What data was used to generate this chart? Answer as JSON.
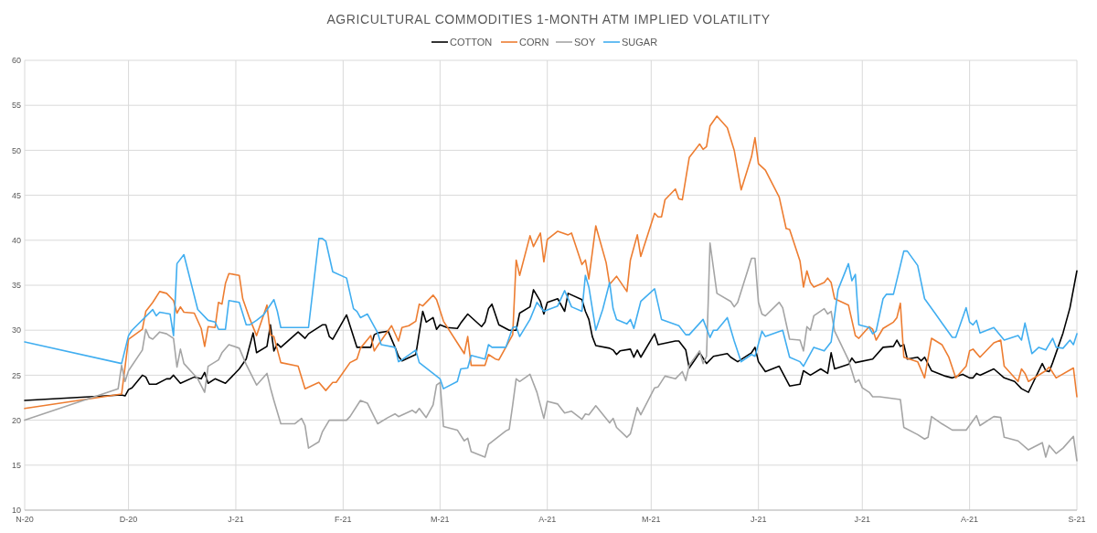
{
  "chart_data": {
    "type": "line",
    "title": "AGRICULTURAL COMMODITIES 1-MONTH ATM IMPLIED VOLATILITY",
    "xlim": [
      "2020-11-01",
      "2021-09-01"
    ],
    "xticks": [
      {
        "value": "2020-11-01",
        "label": "N-20"
      },
      {
        "value": "2020-12-01",
        "label": "D-20"
      },
      {
        "value": "2021-01-01",
        "label": "J-21"
      },
      {
        "value": "2021-02-01",
        "label": "F-21"
      },
      {
        "value": "2021-03-01",
        "label": "M-21"
      },
      {
        "value": "2021-04-01",
        "label": "A-21"
      },
      {
        "value": "2021-05-01",
        "label": "M-21"
      },
      {
        "value": "2021-06-01",
        "label": "J-21"
      },
      {
        "value": "2021-07-01",
        "label": "J-21"
      },
      {
        "value": "2021-08-01",
        "label": "A-21"
      },
      {
        "value": "2021-09-01",
        "label": "S-21"
      }
    ],
    "ylim": [
      10,
      60
    ],
    "yticks": [
      10,
      15,
      20,
      25,
      30,
      35,
      40,
      45,
      50,
      55,
      60
    ],
    "grid": true,
    "legend": "top",
    "series": [
      {
        "name": "COTTON",
        "color": "#000000",
        "x": [
          "2020-11-01",
          "2020-11-29",
          "2020-11-30",
          "2020-12-01",
          "2020-12-02",
          "2020-12-05",
          "2020-12-06",
          "2020-12-07",
          "2020-12-09",
          "2020-12-12",
          "2020-12-13",
          "2020-12-14",
          "2020-12-16",
          "2020-12-20",
          "2020-12-22",
          "2020-12-23",
          "2020-12-24",
          "2020-12-26",
          "2020-12-29",
          "2021-01-02",
          "2021-01-04",
          "2021-01-06",
          "2021-01-07",
          "2021-01-10",
          "2021-01-11",
          "2021-01-12",
          "2021-01-13",
          "2021-01-14",
          "2021-01-19",
          "2021-01-21",
          "2021-01-22",
          "2021-01-26",
          "2021-01-27",
          "2021-01-28",
          "2021-01-29",
          "2021-02-02",
          "2021-02-05",
          "2021-02-09",
          "2021-02-10",
          "2021-02-11",
          "2021-02-14",
          "2021-02-16",
          "2021-02-17",
          "2021-02-18",
          "2021-02-22",
          "2021-02-24",
          "2021-02-25",
          "2021-02-27",
          "2021-02-28",
          "2021-03-01",
          "2021-03-03",
          "2021-03-06",
          "2021-03-07",
          "2021-03-09",
          "2021-03-13",
          "2021-03-14",
          "2021-03-15",
          "2021-03-16",
          "2021-03-18",
          "2021-03-21",
          "2021-03-23",
          "2021-03-24",
          "2021-03-27",
          "2021-03-28",
          "2021-03-30",
          "2021-03-31",
          "2021-04-01",
          "2021-04-04",
          "2021-04-06",
          "2021-04-07",
          "2021-04-11",
          "2021-04-12",
          "2021-04-13",
          "2021-04-14",
          "2021-04-15",
          "2021-04-19",
          "2021-04-20",
          "2021-04-21",
          "2021-04-22",
          "2021-04-25",
          "2021-04-26",
          "2021-04-27",
          "2021-04-28",
          "2021-05-02",
          "2021-05-03",
          "2021-05-08",
          "2021-05-09",
          "2021-05-11",
          "2021-05-12",
          "2021-05-15",
          "2021-05-17",
          "2021-05-19",
          "2021-05-23",
          "2021-05-24",
          "2021-05-26",
          "2021-05-30",
          "2021-05-31",
          "2021-06-01",
          "2021-06-03",
          "2021-06-07",
          "2021-06-10",
          "2021-06-13",
          "2021-06-14",
          "2021-06-16",
          "2021-06-19",
          "2021-06-21",
          "2021-06-22",
          "2021-06-23",
          "2021-06-27",
          "2021-06-28",
          "2021-06-29",
          "2021-07-04",
          "2021-07-07",
          "2021-07-10",
          "2021-07-11",
          "2021-07-12",
          "2021-07-13",
          "2021-07-14",
          "2021-07-17",
          "2021-07-18",
          "2021-07-19",
          "2021-07-21",
          "2021-07-25",
          "2021-07-27",
          "2021-07-30",
          "2021-08-01",
          "2021-08-02",
          "2021-08-03",
          "2021-08-04",
          "2021-08-08",
          "2021-08-11",
          "2021-08-14",
          "2021-08-16",
          "2021-08-18",
          "2021-08-19",
          "2021-08-22",
          "2021-08-23",
          "2021-08-24",
          "2021-08-25",
          "2021-08-28",
          "2021-08-30",
          "2021-09-01"
        ],
        "values": [
          22.2,
          22.8,
          22.7,
          23.4,
          23.6,
          25.0,
          24.8,
          24.0,
          24.0,
          24.6,
          24.6,
          25.0,
          24.1,
          24.8,
          24.6,
          25.3,
          24.1,
          24.6,
          24.1,
          25.7,
          26.8,
          29.7,
          27.5,
          28.2,
          30.6,
          27.7,
          28.5,
          28.1,
          29.8,
          29.1,
          29.6,
          30.6,
          30.6,
          29.3,
          29.0,
          31.7,
          28.1,
          28.1,
          29.5,
          29.7,
          29.9,
          28.1,
          27.1,
          26.6,
          27.3,
          32.1,
          30.9,
          31.4,
          30.1,
          30.6,
          30.3,
          30.2,
          30.8,
          31.8,
          30.4,
          30.9,
          32.4,
          32.9,
          30.6,
          30.0,
          30.0,
          31.9,
          32.6,
          34.5,
          33.2,
          31.8,
          33.1,
          33.5,
          32.1,
          34.1,
          33.4,
          32.1,
          31.2,
          29.3,
          28.3,
          28.0,
          27.8,
          27.3,
          27.7,
          27.9,
          27.0,
          27.8,
          27.0,
          29.6,
          28.4,
          28.8,
          28.8,
          27.8,
          25.8,
          27.5,
          26.3,
          27.1,
          27.4,
          27.0,
          26.5,
          27.5,
          28.1,
          26.5,
          25.4,
          26.0,
          23.8,
          24.0,
          25.5,
          25.0,
          25.7,
          25.2,
          27.5,
          25.7,
          26.2,
          26.9,
          26.4,
          26.8,
          28.1,
          28.2,
          28.9,
          28.2,
          28.4,
          26.8,
          27.0,
          26.6,
          27.0,
          25.5,
          24.9,
          24.7,
          25.1,
          24.7,
          24.7,
          25.2,
          25.0,
          25.7,
          24.7,
          24.3,
          23.5,
          23.1,
          23.9,
          26.3,
          25.5,
          25.4,
          26.4,
          29.7,
          32.5,
          36.6
        ]
      },
      {
        "name": "CORN",
        "color": "#ed7d31",
        "x": [
          "2020-11-01",
          "2020-11-29",
          "2020-12-01",
          "2020-12-05",
          "2020-12-06",
          "2020-12-08",
          "2020-12-10",
          "2020-12-12",
          "2020-12-14",
          "2020-12-15",
          "2020-12-16",
          "2020-12-17",
          "2020-12-20",
          "2020-12-22",
          "2020-12-23",
          "2020-12-24",
          "2020-12-26",
          "2020-12-27",
          "2020-12-28",
          "2020-12-29",
          "2020-12-30",
          "2021-01-02",
          "2021-01-03",
          "2021-01-05",
          "2021-01-07",
          "2021-01-10",
          "2021-01-11",
          "2021-01-12",
          "2021-01-14",
          "2021-01-19",
          "2021-01-21",
          "2021-01-25",
          "2021-01-27",
          "2021-01-29",
          "2021-01-30",
          "2021-02-03",
          "2021-02-05",
          "2021-02-06",
          "2021-02-09",
          "2021-02-10",
          "2021-02-11",
          "2021-02-15",
          "2021-02-17",
          "2021-02-18",
          "2021-02-20",
          "2021-02-22",
          "2021-02-23",
          "2021-02-24",
          "2021-02-27",
          "2021-02-28",
          "2021-03-02",
          "2021-03-06",
          "2021-03-08",
          "2021-03-09",
          "2021-03-10",
          "2021-03-14",
          "2021-03-15",
          "2021-03-17",
          "2021-03-18",
          "2021-03-22",
          "2021-03-23",
          "2021-03-24",
          "2021-03-27",
          "2021-03-28",
          "2021-03-30",
          "2021-03-31",
          "2021-04-01",
          "2021-04-04",
          "2021-04-07",
          "2021-04-08",
          "2021-04-11",
          "2021-04-12",
          "2021-04-13",
          "2021-04-15",
          "2021-04-18",
          "2021-04-19",
          "2021-04-21",
          "2021-04-24",
          "2021-04-25",
          "2021-04-27",
          "2021-04-28",
          "2021-05-02",
          "2021-05-03",
          "2021-05-04",
          "2021-05-05",
          "2021-05-08",
          "2021-05-09",
          "2021-05-10",
          "2021-05-12",
          "2021-05-15",
          "2021-05-16",
          "2021-05-17",
          "2021-05-18",
          "2021-05-20",
          "2021-05-23",
          "2021-05-25",
          "2021-05-27",
          "2021-05-30",
          "2021-05-31",
          "2021-06-01",
          "2021-06-03",
          "2021-06-07",
          "2021-06-09",
          "2021-06-10",
          "2021-06-13",
          "2021-06-14",
          "2021-06-15",
          "2021-06-16",
          "2021-06-17",
          "2021-06-20",
          "2021-06-21",
          "2021-06-22",
          "2021-06-23",
          "2021-06-27",
          "2021-06-29",
          "2021-06-30",
          "2021-07-03",
          "2021-07-04",
          "2021-07-05",
          "2021-07-07",
          "2021-07-10",
          "2021-07-11",
          "2021-07-12",
          "2021-07-13",
          "2021-07-17",
          "2021-07-19",
          "2021-07-21",
          "2021-07-24",
          "2021-07-26",
          "2021-07-28",
          "2021-07-31",
          "2021-08-01",
          "2021-08-02",
          "2021-08-04",
          "2021-08-08",
          "2021-08-10",
          "2021-08-11",
          "2021-08-15",
          "2021-08-16",
          "2021-08-17",
          "2021-08-18",
          "2021-08-23",
          "2021-08-24",
          "2021-08-26",
          "2021-08-31",
          "2021-09-01"
        ],
        "values": [
          21.3,
          22.9,
          29.0,
          30.1,
          32.1,
          33.1,
          34.3,
          34.1,
          33.3,
          31.9,
          32.6,
          32.0,
          31.9,
          30.2,
          28.2,
          30.4,
          30.3,
          33.1,
          32.9,
          35.2,
          36.3,
          36.1,
          33.5,
          31.3,
          29.4,
          32.8,
          29.5,
          29.3,
          26.4,
          26.0,
          23.5,
          24.2,
          23.3,
          24.2,
          24.2,
          26.4,
          26.8,
          28.0,
          29.4,
          27.7,
          28.3,
          30.5,
          28.8,
          30.3,
          30.5,
          31.0,
          32.9,
          32.7,
          33.9,
          33.4,
          31.0,
          28.6,
          27.4,
          29.3,
          26.1,
          26.1,
          27.3,
          26.8,
          26.7,
          29.5,
          37.8,
          36.1,
          40.5,
          39.3,
          40.8,
          37.6,
          40.1,
          41.0,
          40.6,
          40.8,
          37.3,
          37.8,
          35.7,
          41.6,
          37.5,
          35.1,
          36.0,
          34.3,
          37.8,
          40.6,
          38.2,
          43.0,
          42.6,
          42.6,
          44.5,
          45.7,
          44.6,
          44.5,
          49.2,
          50.7,
          50.1,
          50.4,
          52.7,
          53.8,
          52.5,
          50.0,
          45.6,
          49.3,
          51.4,
          48.5,
          47.8,
          44.8,
          41.3,
          41.2,
          37.7,
          34.8,
          36.6,
          35.3,
          34.8,
          35.3,
          35.8,
          35.3,
          33.5,
          32.8,
          29.4,
          29.1,
          30.4,
          30.1,
          28.9,
          30.2,
          30.9,
          31.4,
          33.0,
          27.0,
          26.5,
          24.7,
          29.1,
          28.4,
          27.0,
          24.7,
          26.0,
          27.7,
          27.9,
          27.0,
          28.6,
          28.9,
          26.0,
          24.3,
          25.7,
          25.2,
          24.3,
          25.5,
          25.9,
          24.7,
          25.8,
          22.6
        ]
      },
      {
        "name": "SOY",
        "color": "#a5a5a5",
        "x": [
          "2020-11-01",
          "2020-11-28",
          "2020-11-29",
          "2020-11-30",
          "2020-12-01",
          "2020-12-05",
          "2020-12-06",
          "2020-12-07",
          "2020-12-08",
          "2020-12-10",
          "2020-12-12",
          "2020-12-14",
          "2020-12-15",
          "2020-12-16",
          "2020-12-17",
          "2020-12-21",
          "2020-12-23",
          "2020-12-24",
          "2020-12-27",
          "2020-12-28",
          "2020-12-30",
          "2021-01-02",
          "2021-01-04",
          "2021-01-07",
          "2021-01-10",
          "2021-01-11",
          "2021-01-12",
          "2021-01-14",
          "2021-01-18",
          "2021-01-20",
          "2021-01-21",
          "2021-01-22",
          "2021-01-25",
          "2021-01-26",
          "2021-01-28",
          "2021-02-02",
          "2021-02-03",
          "2021-02-06",
          "2021-02-08",
          "2021-02-11",
          "2021-02-14",
          "2021-02-16",
          "2021-02-17",
          "2021-02-21",
          "2021-02-22",
          "2021-02-23",
          "2021-02-25",
          "2021-02-27",
          "2021-02-28",
          "2021-03-01",
          "2021-03-02",
          "2021-03-06",
          "2021-03-08",
          "2021-03-09",
          "2021-03-10",
          "2021-03-14",
          "2021-03-15",
          "2021-03-20",
          "2021-03-21",
          "2021-03-22",
          "2021-03-23",
          "2021-03-24",
          "2021-03-27",
          "2021-03-29",
          "2021-03-31",
          "2021-04-01",
          "2021-04-04",
          "2021-04-06",
          "2021-04-08",
          "2021-04-11",
          "2021-04-12",
          "2021-04-13",
          "2021-04-15",
          "2021-04-19",
          "2021-04-20",
          "2021-04-21",
          "2021-04-24",
          "2021-04-25",
          "2021-04-27",
          "2021-04-28",
          "2021-05-02",
          "2021-05-03",
          "2021-05-05",
          "2021-05-08",
          "2021-05-10",
          "2021-05-11",
          "2021-05-12",
          "2021-05-15",
          "2021-05-16",
          "2021-05-17",
          "2021-05-18",
          "2021-05-20",
          "2021-05-24",
          "2021-05-25",
          "2021-05-26",
          "2021-05-30",
          "2021-05-31",
          "2021-06-01",
          "2021-06-02",
          "2021-06-03",
          "2021-06-07",
          "2021-06-08",
          "2021-06-10",
          "2021-06-13",
          "2021-06-14",
          "2021-06-15",
          "2021-06-16",
          "2021-06-17",
          "2021-06-20",
          "2021-06-21",
          "2021-06-22",
          "2021-06-23",
          "2021-06-27",
          "2021-06-29",
          "2021-06-30",
          "2021-07-01",
          "2021-07-03",
          "2021-07-04",
          "2021-07-06",
          "2021-07-08",
          "2021-07-12",
          "2021-07-13",
          "2021-07-17",
          "2021-07-19",
          "2021-07-20",
          "2021-07-21",
          "2021-07-24",
          "2021-07-27",
          "2021-07-31",
          "2021-08-03",
          "2021-08-04",
          "2021-08-08",
          "2021-08-10",
          "2021-08-11",
          "2021-08-15",
          "2021-08-18",
          "2021-08-22",
          "2021-08-23",
          "2021-08-24",
          "2021-08-26",
          "2021-08-28",
          "2021-08-31",
          "2021-09-01"
        ],
        "values": [
          20.0,
          23.5,
          26.1,
          24.3,
          25.5,
          27.8,
          30.1,
          29.2,
          29.0,
          29.8,
          29.6,
          29.1,
          25.9,
          27.9,
          26.3,
          24.6,
          23.1,
          26.0,
          26.7,
          27.5,
          28.4,
          28.0,
          26.2,
          23.9,
          25.2,
          23.6,
          22.2,
          19.6,
          19.6,
          20.2,
          19.4,
          16.9,
          17.6,
          18.7,
          20.0,
          20.0,
          20.4,
          22.2,
          21.9,
          19.6,
          20.3,
          20.7,
          20.4,
          21.1,
          20.8,
          21.3,
          20.3,
          21.7,
          23.9,
          24.2,
          19.3,
          18.9,
          17.7,
          18.0,
          16.5,
          15.9,
          17.3,
          18.8,
          19.0,
          21.7,
          24.6,
          24.3,
          25.1,
          23.1,
          20.2,
          22.1,
          21.8,
          20.8,
          21.0,
          20.1,
          20.7,
          20.6,
          21.6,
          19.7,
          20.2,
          19.2,
          18.1,
          18.5,
          21.4,
          20.6,
          23.6,
          23.7,
          24.9,
          24.6,
          25.4,
          24.4,
          26.1,
          27.7,
          26.3,
          27.1,
          39.7,
          34.1,
          33.2,
          32.6,
          33.1,
          38.0,
          38.0,
          33.1,
          31.8,
          31.6,
          33.1,
          32.5,
          29.0,
          28.9,
          27.7,
          30.4,
          30.0,
          31.6,
          32.4,
          31.8,
          32.1,
          29.9,
          26.7,
          24.2,
          24.5,
          23.6,
          23.1,
          22.6,
          22.6,
          22.5,
          22.3,
          19.2,
          18.4,
          17.9,
          18.1,
          20.4,
          19.6,
          18.9,
          18.9,
          20.5,
          19.4,
          20.4,
          20.3,
          18.1,
          17.7,
          16.7,
          17.5,
          15.9,
          17.2,
          16.3,
          16.9,
          18.2,
          15.5
        ]
      },
      {
        "name": "SUGAR",
        "color": "#41aef0",
        "x": [
          "2020-11-01",
          "2020-11-29",
          "2020-12-01",
          "2020-12-02",
          "2020-12-08",
          "2020-12-09",
          "2020-12-10",
          "2020-12-13",
          "2020-12-14",
          "2020-12-15",
          "2020-12-17",
          "2020-12-21",
          "2020-12-24",
          "2020-12-26",
          "2020-12-27",
          "2020-12-29",
          "2020-12-30",
          "2021-01-02",
          "2021-01-04",
          "2021-01-05",
          "2021-01-07",
          "2021-01-09",
          "2021-01-12",
          "2021-01-13",
          "2021-01-14",
          "2021-01-22",
          "2021-01-25",
          "2021-01-26",
          "2021-01-27",
          "2021-01-29",
          "2021-02-02",
          "2021-02-04",
          "2021-02-05",
          "2021-02-06",
          "2021-02-08",
          "2021-02-11",
          "2021-02-12",
          "2021-02-16",
          "2021-02-17",
          "2021-02-18",
          "2021-02-22",
          "2021-02-23",
          "2021-03-01",
          "2021-03-02",
          "2021-03-06",
          "2021-03-07",
          "2021-03-09",
          "2021-03-10",
          "2021-03-14",
          "2021-03-15",
          "2021-03-16",
          "2021-03-20",
          "2021-03-22",
          "2021-03-23",
          "2021-03-24",
          "2021-03-27",
          "2021-03-29",
          "2021-03-31",
          "2021-04-04",
          "2021-04-06",
          "2021-04-08",
          "2021-04-11",
          "2021-04-12",
          "2021-04-13",
          "2021-04-15",
          "2021-04-17",
          "2021-04-19",
          "2021-04-20",
          "2021-04-21",
          "2021-04-24",
          "2021-04-25",
          "2021-04-26",
          "2021-04-28",
          "2021-05-02",
          "2021-05-04",
          "2021-05-09",
          "2021-05-11",
          "2021-05-12",
          "2021-05-16",
          "2021-05-18",
          "2021-05-19",
          "2021-05-20",
          "2021-05-23",
          "2021-05-25",
          "2021-05-27",
          "2021-05-30",
          "2021-05-31",
          "2021-06-02",
          "2021-06-03",
          "2021-06-08",
          "2021-06-10",
          "2021-06-13",
          "2021-06-14",
          "2021-06-17",
          "2021-06-20",
          "2021-06-22",
          "2021-06-24",
          "2021-06-27",
          "2021-06-28",
          "2021-06-29",
          "2021-06-30",
          "2021-07-03",
          "2021-07-04",
          "2021-07-05",
          "2021-07-07",
          "2021-07-08",
          "2021-07-10",
          "2021-07-12",
          "2021-07-13",
          "2021-07-14",
          "2021-07-17",
          "2021-07-19",
          "2021-07-22",
          "2021-07-24",
          "2021-07-27",
          "2021-07-28",
          "2021-07-31",
          "2021-08-01",
          "2021-08-02",
          "2021-08-03",
          "2021-08-04",
          "2021-08-08",
          "2021-08-11",
          "2021-08-15",
          "2021-08-16",
          "2021-08-17",
          "2021-08-19",
          "2021-08-21",
          "2021-08-23",
          "2021-08-25",
          "2021-08-26",
          "2021-08-28",
          "2021-08-30",
          "2021-08-31",
          "2021-09-01"
        ],
        "values": [
          28.7,
          26.3,
          29.4,
          30.0,
          32.3,
          31.6,
          32.0,
          31.8,
          29.4,
          37.4,
          38.4,
          32.3,
          31.1,
          30.9,
          30.1,
          30.1,
          33.3,
          33.1,
          30.6,
          30.6,
          31.1,
          31.7,
          33.4,
          32.1,
          30.3,
          30.3,
          40.2,
          40.2,
          39.9,
          36.5,
          35.8,
          32.4,
          32.1,
          31.4,
          31.8,
          29.7,
          28.4,
          28.1,
          26.5,
          26.7,
          27.8,
          26.4,
          24.6,
          23.5,
          24.3,
          25.7,
          25.8,
          27.2,
          26.8,
          28.4,
          28.1,
          28.1,
          30.3,
          30.4,
          29.3,
          31.2,
          33.1,
          32.1,
          32.7,
          34.4,
          32.6,
          32.1,
          36.1,
          34.8,
          30.0,
          32.3,
          35.3,
          32.4,
          31.2,
          30.7,
          31.2,
          30.2,
          33.2,
          34.6,
          31.2,
          30.5,
          29.5,
          29.5,
          31.2,
          29.2,
          30.0,
          30.0,
          31.4,
          28.8,
          26.5,
          27.3,
          27.1,
          29.9,
          29.3,
          30.0,
          27.0,
          26.5,
          26.0,
          28.1,
          27.7,
          28.7,
          34.5,
          37.4,
          35.5,
          36.2,
          30.6,
          30.3,
          29.6,
          29.9,
          33.5,
          34.0,
          34.0,
          37.2,
          38.8,
          38.8,
          37.2,
          33.5,
          31.9,
          30.8,
          29.2,
          29.2,
          32.5,
          30.9,
          30.6,
          31.1,
          29.7,
          30.3,
          28.9,
          29.4,
          28.9,
          30.8,
          27.4,
          28.1,
          27.8,
          29.1,
          28.1,
          28.0,
          28.9,
          28.4,
          29.6
        ]
      }
    ]
  }
}
